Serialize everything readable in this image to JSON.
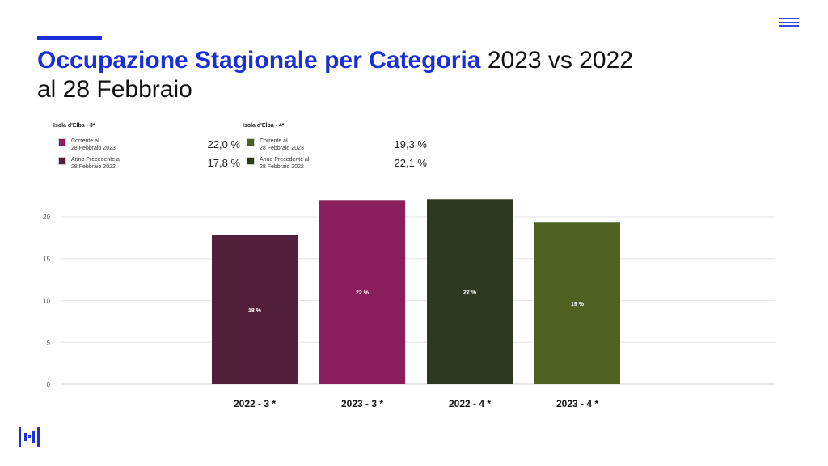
{
  "title": {
    "strong": "Occupazione Stagionale per Categoria",
    "rest": "2023 vs 2022",
    "line2": "al 28 Febbraio"
  },
  "legend": [
    {
      "heading": "Isola d'Elba - 3*",
      "items": [
        {
          "line1": "Corrente al",
          "line2": "28 Febbraio 2023",
          "value": "22,0 %",
          "color": "#8b1f5e"
        },
        {
          "line1": "Anno Precedente al",
          "line2": "28 Febbraio 2022",
          "value": "17,8 %",
          "color": "#52203a"
        }
      ]
    },
    {
      "heading": "Isola d'Elba - 4*",
      "items": [
        {
          "line1": "Corrente al",
          "line2": "28 Febbraio 2023",
          "value": "19,3 %",
          "color": "#4e6121"
        },
        {
          "line1": "Anno Precedente al",
          "line2": "28 Febbraio 2022",
          "value": "22,1 %",
          "color": "#2e3a20"
        }
      ]
    }
  ],
  "chart_data": {
    "type": "bar",
    "categories": [
      "2022 - 3 *",
      "2023 - 3 *",
      "2022 - 4 *",
      "2023 - 4 *"
    ],
    "values": [
      17.8,
      22.0,
      22.1,
      19.3
    ],
    "labels": [
      "18 %",
      "22 %",
      "22 %",
      "19 %"
    ],
    "colors": [
      "#52203a",
      "#8b1f5e",
      "#2e3a20",
      "#4e6121"
    ],
    "yticks": [
      "0",
      "5",
      "10",
      "15",
      "20"
    ],
    "ylim": [
      0,
      22
    ],
    "grid": true
  }
}
